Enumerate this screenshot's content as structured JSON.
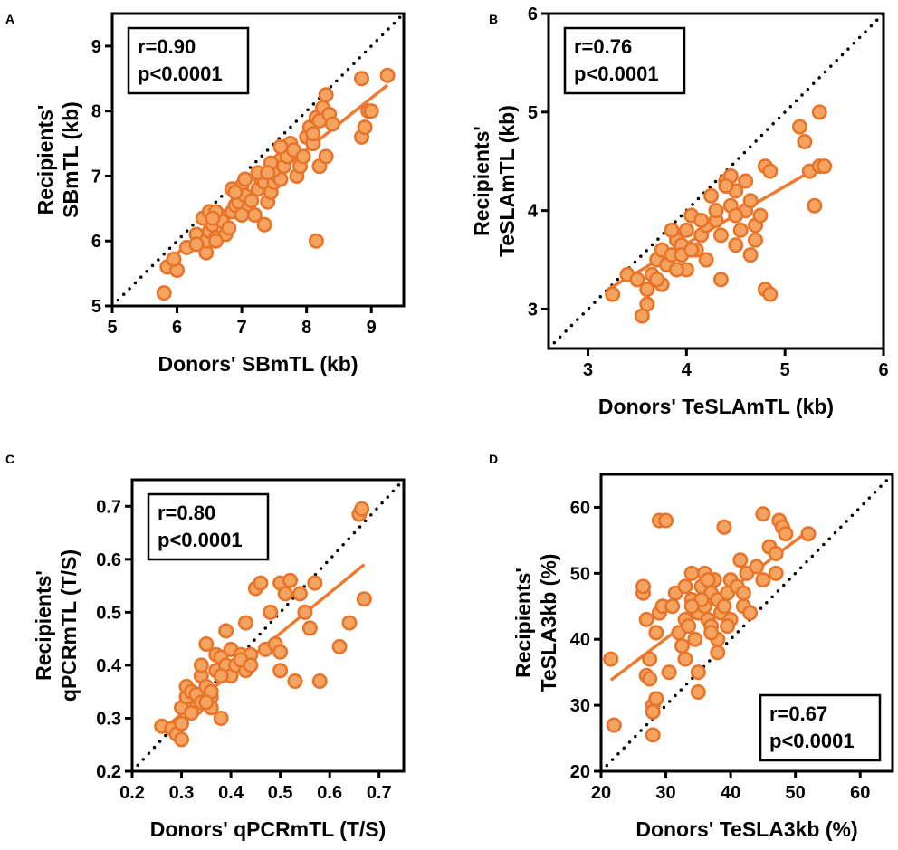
{
  "colors": {
    "point_fill": "#F4A460",
    "point_stroke": "#E8742A",
    "fit_line": "#EE7A30",
    "identity_line": "#000000"
  },
  "chart_data": [
    {
      "panel": "A",
      "type": "scatter",
      "xlabel": "Donors' SBmTL (kb)",
      "ylabel_lines": [
        "Recipients'",
        "SBmTL (kb)"
      ],
      "xlim": [
        5,
        9.5
      ],
      "ylim": [
        5,
        9.5
      ],
      "xticks": [
        5,
        6,
        7,
        8,
        9
      ],
      "yticks": [
        5,
        6,
        7,
        8,
        9
      ],
      "stats": [
        "r=0.90",
        "p<0.0001"
      ],
      "stats_corner": "top-left",
      "fit": [
        [
          5.8,
          5.65
        ],
        [
          9.25,
          8.4
        ]
      ],
      "identity": true,
      "points": [
        [
          5.8,
          5.2
        ],
        [
          5.85,
          5.6
        ],
        [
          6.0,
          5.55
        ],
        [
          5.95,
          5.72
        ],
        [
          6.15,
          5.9
        ],
        [
          6.3,
          6.1
        ],
        [
          6.45,
          5.82
        ],
        [
          6.45,
          6.0
        ],
        [
          6.5,
          6.15
        ],
        [
          6.55,
          6.25
        ],
        [
          6.6,
          6.05
        ],
        [
          6.4,
          6.35
        ],
        [
          6.5,
          6.45
        ],
        [
          6.65,
          6.4
        ],
        [
          6.7,
          6.3
        ],
        [
          6.75,
          6.1
        ],
        [
          6.8,
          6.2
        ],
        [
          6.85,
          6.45
        ],
        [
          6.9,
          6.55
        ],
        [
          6.95,
          6.6
        ],
        [
          7.0,
          6.85
        ],
        [
          7.05,
          6.7
        ],
        [
          7.1,
          6.5
        ],
        [
          7.15,
          6.62
        ],
        [
          7.2,
          6.4
        ],
        [
          7.25,
          6.8
        ],
        [
          7.3,
          6.95
        ],
        [
          7.35,
          6.9
        ],
        [
          7.4,
          6.6
        ],
        [
          7.45,
          6.75
        ],
        [
          7.5,
          6.9
        ],
        [
          7.55,
          7.0
        ],
        [
          7.6,
          6.95
        ],
        [
          7.5,
          7.1
        ],
        [
          7.6,
          7.25
        ],
        [
          7.65,
          7.15
        ],
        [
          7.7,
          7.3
        ],
        [
          7.75,
          7.5
        ],
        [
          7.8,
          7.4
        ],
        [
          7.85,
          7.0
        ],
        [
          7.9,
          7.15
        ],
        [
          7.35,
          6.25
        ],
        [
          7.0,
          6.4
        ],
        [
          6.6,
          6.0
        ],
        [
          6.3,
          5.95
        ],
        [
          7.95,
          7.3
        ],
        [
          8.0,
          7.6
        ],
        [
          8.05,
          7.75
        ],
        [
          8.1,
          7.5
        ],
        [
          8.15,
          7.9
        ],
        [
          8.2,
          7.85
        ],
        [
          8.25,
          8.05
        ],
        [
          8.3,
          8.25
        ],
        [
          8.35,
          7.95
        ],
        [
          8.4,
          7.8
        ],
        [
          8.2,
          7.15
        ],
        [
          8.3,
          7.3
        ],
        [
          8.1,
          7.65
        ],
        [
          8.15,
          6.0
        ],
        [
          8.85,
          7.6
        ],
        [
          8.9,
          7.75
        ],
        [
          8.95,
          8.0
        ],
        [
          9.0,
          8.0
        ],
        [
          8.85,
          8.5
        ],
        [
          9.25,
          8.55
        ],
        [
          6.6,
          6.45
        ],
        [
          6.85,
          6.8
        ],
        [
          7.05,
          6.95
        ],
        [
          7.25,
          7.05
        ],
        [
          7.45,
          7.2
        ],
        [
          7.6,
          7.45
        ],
        [
          7.4,
          7.05
        ],
        [
          6.9,
          6.75
        ],
        [
          6.55,
          6.35
        ]
      ]
    },
    {
      "panel": "B",
      "type": "scatter",
      "xlabel": "Donors' TeSLAmTL (kb)",
      "ylabel_lines": [
        "Recipients'",
        "TeSLAmTL (kb)"
      ],
      "xlim": [
        2.6,
        6
      ],
      "ylim": [
        2.6,
        6
      ],
      "xticks": [
        3,
        4,
        5,
        6
      ],
      "yticks": [
        3,
        4,
        5,
        6
      ],
      "stats": [
        "r=0.76",
        "p<0.0001"
      ],
      "stats_corner": "top-left",
      "fit": [
        [
          3.2,
          3.2
        ],
        [
          5.35,
          4.45
        ]
      ],
      "identity": true,
      "points": [
        [
          3.25,
          3.15
        ],
        [
          3.4,
          3.35
        ],
        [
          3.5,
          3.3
        ],
        [
          3.55,
          2.93
        ],
        [
          3.6,
          3.05
        ],
        [
          3.6,
          3.2
        ],
        [
          3.65,
          3.35
        ],
        [
          3.7,
          3.5
        ],
        [
          3.75,
          3.6
        ],
        [
          3.75,
          3.25
        ],
        [
          3.8,
          3.45
        ],
        [
          3.85,
          3.55
        ],
        [
          3.9,
          3.7
        ],
        [
          3.95,
          3.65
        ],
        [
          4.0,
          3.8
        ],
        [
          4.0,
          3.4
        ],
        [
          4.05,
          3.95
        ],
        [
          4.1,
          3.6
        ],
        [
          4.15,
          3.75
        ],
        [
          4.2,
          3.85
        ],
        [
          4.2,
          3.5
        ],
        [
          4.25,
          4.15
        ],
        [
          4.3,
          3.9
        ],
        [
          4.35,
          3.3
        ],
        [
          4.4,
          4.3
        ],
        [
          4.45,
          4.05
        ],
        [
          4.45,
          4.35
        ],
        [
          4.5,
          4.2
        ],
        [
          4.5,
          3.65
        ],
        [
          4.55,
          3.8
        ],
        [
          4.6,
          4.0
        ],
        [
          4.65,
          4.1
        ],
        [
          4.7,
          3.85
        ],
        [
          4.7,
          3.7
        ],
        [
          4.75,
          3.95
        ],
        [
          4.8,
          4.45
        ],
        [
          4.8,
          3.2
        ],
        [
          4.85,
          3.15
        ],
        [
          4.85,
          4.4
        ],
        [
          5.15,
          4.85
        ],
        [
          5.2,
          4.7
        ],
        [
          5.25,
          4.4
        ],
        [
          5.3,
          4.05
        ],
        [
          5.35,
          4.45
        ],
        [
          5.4,
          4.45
        ],
        [
          5.35,
          5.0
        ],
        [
          4.4,
          4.25
        ],
        [
          3.95,
          3.55
        ],
        [
          4.05,
          3.6
        ],
        [
          4.3,
          4.0
        ],
        [
          3.7,
          3.3
        ],
        [
          3.9,
          3.4
        ],
        [
          4.15,
          3.9
        ],
        [
          4.5,
          3.95
        ],
        [
          4.65,
          3.55
        ],
        [
          4.6,
          4.3
        ],
        [
          3.85,
          3.8
        ],
        [
          4.35,
          3.75
        ]
      ]
    },
    {
      "panel": "C",
      "type": "scatter",
      "xlabel": "Donors' qPCRmTL (T/S)",
      "ylabel_lines": [
        "Recipients'",
        "qPCRmTL (T/S)"
      ],
      "xlim": [
        0.2,
        0.75
      ],
      "ylim": [
        0.2,
        0.75
      ],
      "xticks": [
        0.2,
        0.3,
        0.4,
        0.5,
        0.6,
        0.7
      ],
      "yticks": [
        0.2,
        0.3,
        0.4,
        0.5,
        0.6,
        0.7
      ],
      "stats": [
        "r=0.80",
        "p<0.0001"
      ],
      "stats_corner": "top-left",
      "fit": [
        [
          0.27,
          0.285
        ],
        [
          0.67,
          0.59
        ]
      ],
      "identity": true,
      "points": [
        [
          0.26,
          0.285
        ],
        [
          0.28,
          0.28
        ],
        [
          0.29,
          0.27
        ],
        [
          0.3,
          0.26
        ],
        [
          0.3,
          0.29
        ],
        [
          0.3,
          0.32
        ],
        [
          0.31,
          0.34
        ],
        [
          0.31,
          0.36
        ],
        [
          0.32,
          0.35
        ],
        [
          0.33,
          0.32
        ],
        [
          0.33,
          0.345
        ],
        [
          0.34,
          0.33
        ],
        [
          0.34,
          0.38
        ],
        [
          0.35,
          0.44
        ],
        [
          0.35,
          0.36
        ],
        [
          0.36,
          0.34
        ],
        [
          0.36,
          0.32
        ],
        [
          0.37,
          0.42
        ],
        [
          0.37,
          0.39
        ],
        [
          0.38,
          0.3
        ],
        [
          0.38,
          0.415
        ],
        [
          0.39,
          0.465
        ],
        [
          0.39,
          0.4
        ],
        [
          0.4,
          0.43
        ],
        [
          0.4,
          0.38
        ],
        [
          0.41,
          0.4
        ],
        [
          0.42,
          0.42
        ],
        [
          0.43,
          0.48
        ],
        [
          0.43,
          0.39
        ],
        [
          0.44,
          0.42
        ],
        [
          0.45,
          0.545
        ],
        [
          0.46,
          0.555
        ],
        [
          0.47,
          0.43
        ],
        [
          0.48,
          0.5
        ],
        [
          0.49,
          0.44
        ],
        [
          0.5,
          0.425
        ],
        [
          0.5,
          0.39
        ],
        [
          0.5,
          0.555
        ],
        [
          0.51,
          0.535
        ],
        [
          0.52,
          0.56
        ],
        [
          0.53,
          0.37
        ],
        [
          0.54,
          0.535
        ],
        [
          0.55,
          0.5
        ],
        [
          0.56,
          0.47
        ],
        [
          0.57,
          0.555
        ],
        [
          0.58,
          0.37
        ],
        [
          0.62,
          0.435
        ],
        [
          0.64,
          0.48
        ],
        [
          0.66,
          0.685
        ],
        [
          0.665,
          0.695
        ],
        [
          0.67,
          0.525
        ],
        [
          0.34,
          0.4
        ],
        [
          0.36,
          0.35
        ],
        [
          0.38,
          0.38
        ],
        [
          0.42,
          0.41
        ],
        [
          0.44,
          0.4
        ],
        [
          0.32,
          0.31
        ],
        [
          0.35,
          0.33
        ]
      ]
    },
    {
      "panel": "D",
      "type": "scatter",
      "xlabel": "Donors' TeSLA3kb (%)",
      "ylabel_lines": [
        "Recipients'",
        "TeSLA3kb (%)"
      ],
      "xlim": [
        20,
        65
      ],
      "ylim": [
        20,
        65
      ],
      "xticks": [
        20,
        30,
        40,
        50,
        60
      ],
      "yticks": [
        20,
        30,
        40,
        50,
        60
      ],
      "stats": [
        "r=0.67",
        "p<0.0001"
      ],
      "stats_corner": "bottom-right",
      "fit": [
        [
          21.5,
          33.8
        ],
        [
          52.5,
          56.8
        ]
      ],
      "identity": true,
      "points": [
        [
          21.5,
          37
        ],
        [
          22,
          27
        ],
        [
          26.5,
          47
        ],
        [
          26.5,
          48
        ],
        [
          27,
          34.5
        ],
        [
          27,
          43
        ],
        [
          27.5,
          34
        ],
        [
          27.5,
          37
        ],
        [
          28,
          25.5
        ],
        [
          28,
          30
        ],
        [
          28,
          29
        ],
        [
          28.5,
          31
        ],
        [
          28.5,
          41
        ],
        [
          29,
          58
        ],
        [
          29,
          44
        ],
        [
          29.5,
          45
        ],
        [
          30,
          58
        ],
        [
          30.5,
          35
        ],
        [
          31,
          45
        ],
        [
          31.5,
          47
        ],
        [
          32,
          41
        ],
        [
          32.5,
          39
        ],
        [
          33,
          37
        ],
        [
          33,
          43
        ],
        [
          33.5,
          42
        ],
        [
          34,
          50
        ],
        [
          34,
          46
        ],
        [
          34.5,
          40
        ],
        [
          35,
          32
        ],
        [
          35,
          35
        ],
        [
          35,
          44
        ],
        [
          35.5,
          48
        ],
        [
          36,
          50
        ],
        [
          36,
          45
        ],
        [
          36.5,
          43
        ],
        [
          37,
          42
        ],
        [
          37,
          47
        ],
        [
          37.5,
          49
        ],
        [
          38,
          40
        ],
        [
          38,
          46
        ],
        [
          38.5,
          44
        ],
        [
          39,
          45
        ],
        [
          39,
          57
        ],
        [
          39.5,
          47
        ],
        [
          40,
          49
        ],
        [
          40,
          43
        ],
        [
          41,
          48
        ],
        [
          41.5,
          52
        ],
        [
          42,
          45
        ],
        [
          42.5,
          50
        ],
        [
          43,
          44
        ],
        [
          44,
          51
        ],
        [
          45,
          59
        ],
        [
          45,
          49
        ],
        [
          46,
          54
        ],
        [
          47,
          50
        ],
        [
          47,
          53
        ],
        [
          47.5,
          58
        ],
        [
          48,
          57
        ],
        [
          48.5,
          56
        ],
        [
          52,
          56
        ],
        [
          38,
          38
        ],
        [
          37,
          41
        ],
        [
          35.5,
          46
        ],
        [
          36.5,
          49
        ],
        [
          39.5,
          42
        ],
        [
          42,
          47
        ],
        [
          34,
          45
        ],
        [
          33,
          48
        ]
      ]
    }
  ]
}
